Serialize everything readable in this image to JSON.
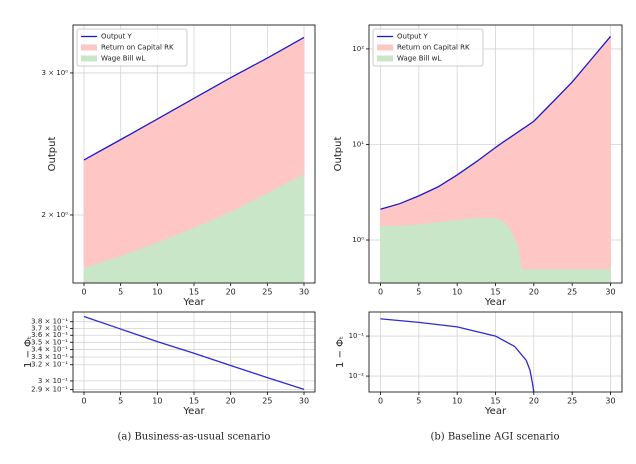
{
  "chart_data": [
    {
      "type": "area",
      "xlabel": "Year",
      "ylabel": "Output",
      "log_y": true,
      "grid": true,
      "legend": "upper left",
      "xlim": [
        -1.5,
        31.5
      ],
      "ylim": [
        1.647,
        3.44
      ],
      "xticks": [
        0,
        5,
        10,
        15,
        20,
        25,
        30
      ],
      "yticks": [
        {
          "value": 2,
          "label": "2 × 10⁰"
        },
        {
          "value": 3,
          "label": "3 × 10⁰"
        }
      ],
      "x": [
        0,
        5,
        10,
        15,
        20,
        25,
        30
      ],
      "series": [
        {
          "name": "Output Y",
          "type": "line",
          "color": "#1a1ad0",
          "values": [
            2.34,
            2.48,
            2.63,
            2.79,
            2.96,
            3.13,
            3.32
          ]
        },
        {
          "name": "Return on Capital RK",
          "type": "area",
          "color": "#ffc6c6",
          "values": [
            0.62,
            0.7,
            0.78,
            0.86,
            0.94,
            1.0,
            1.07
          ]
        },
        {
          "name": "Wage Bill wL",
          "type": "area",
          "color": "#c9e6c9",
          "values": [
            1.72,
            1.78,
            1.85,
            1.93,
            2.02,
            2.13,
            2.25
          ]
        }
      ]
    },
    {
      "type": "area",
      "xlabel": "Year",
      "ylabel": "Output",
      "log_y": true,
      "grid": true,
      "legend": "upper left",
      "xlim": [
        -1.5,
        31.5
      ],
      "ylim": [
        0.355,
        178
      ],
      "xticks": [
        0,
        5,
        10,
        15,
        20,
        25,
        30
      ],
      "yticks": [
        {
          "value": 1,
          "label": "10⁰"
        },
        {
          "value": 10,
          "label": "10¹"
        },
        {
          "value": 100,
          "label": "10²"
        }
      ],
      "x": [
        0,
        2.5,
        5,
        7.5,
        10,
        12.5,
        15,
        16,
        17,
        18,
        18.5,
        19,
        20,
        22.5,
        25,
        27.5,
        30
      ],
      "series": [
        {
          "name": "Output Y",
          "type": "line",
          "color": "#1a1ad0",
          "values": [
            2.1,
            2.4,
            2.9,
            3.6,
            4.8,
            6.6,
            9.3,
            10.6,
            12,
            13.6,
            14.5,
            15.4,
            17.5,
            28,
            45,
            78,
            135
          ]
        },
        {
          "name": "Return on Capital RK",
          "type": "area",
          "color": "#ffc6c6",
          "values": [
            0.7,
            0.98,
            1.43,
            2.05,
            3.17,
            4.88,
            7.58,
            9.0,
            10.7,
            12.75,
            14.0,
            14.9,
            17.0,
            27.5,
            44.5,
            77.5,
            134.5
          ]
        },
        {
          "name": "Wage Bill wL",
          "type": "area",
          "color": "#c9e6c9",
          "values": [
            1.4,
            1.42,
            1.47,
            1.55,
            1.63,
            1.72,
            1.72,
            1.6,
            1.3,
            0.85,
            0.5,
            0.5,
            0.5,
            0.5,
            0.5,
            0.5,
            0.5
          ]
        }
      ]
    },
    {
      "type": "line",
      "xlabel": "Year",
      "ylabel": "1 − Φₜ",
      "log_y": true,
      "grid": true,
      "xlim": [
        -1.5,
        31.5
      ],
      "ylim": [
        0.287,
        0.395
      ],
      "xticks": [
        0,
        5,
        10,
        15,
        20,
        25,
        30
      ],
      "yticks": [
        {
          "value": 0.38,
          "label": "3.8 × 10⁻¹"
        },
        {
          "value": 0.37,
          "label": "3.7 × 10⁻¹"
        },
        {
          "value": 0.36,
          "label": "3.6 × 10⁻¹"
        },
        {
          "value": 0.35,
          "label": "3.5 × 10⁻¹"
        },
        {
          "value": 0.34,
          "label": "3.4 × 10⁻¹"
        },
        {
          "value": 0.33,
          "label": "3.3 × 10⁻¹"
        },
        {
          "value": 0.32,
          "label": "3.2 × 10⁻¹"
        },
        {
          "value": 0.3,
          "label": "3 × 10⁻¹"
        },
        {
          "value": 0.29,
          "label": "2.9 × 10⁻¹"
        }
      ],
      "x": [
        0,
        5,
        10,
        15,
        20,
        25,
        30
      ],
      "series": [
        {
          "type": "line",
          "color": "#2b2bd6",
          "values": [
            0.388,
            0.369,
            0.351,
            0.335,
            0.319,
            0.304,
            0.29
          ]
        }
      ]
    },
    {
      "type": "line",
      "xlabel": "Year",
      "ylabel": "1 − Φₜ",
      "log_y": true,
      "grid": true,
      "xlim": [
        -1.5,
        31.5
      ],
      "ylim": [
        0.004,
        0.4
      ],
      "xticks": [
        0,
        5,
        10,
        15,
        20,
        25,
        30
      ],
      "yticks": [
        {
          "value": 0.01,
          "label": "10⁻²"
        },
        {
          "value": 0.1,
          "label": "10⁻¹"
        }
      ],
      "x": [
        0,
        5,
        10,
        15,
        17.5,
        19,
        19.5,
        19.8,
        20
      ],
      "series": [
        {
          "type": "line",
          "color": "#2b2bd6",
          "values": [
            0.27,
            0.22,
            0.17,
            0.1,
            0.055,
            0.025,
            0.014,
            0.007,
            0.004
          ]
        }
      ]
    }
  ],
  "captions": [
    "(a) Business-as-usual scenario",
    "(b) Baseline AGI scenario"
  ]
}
